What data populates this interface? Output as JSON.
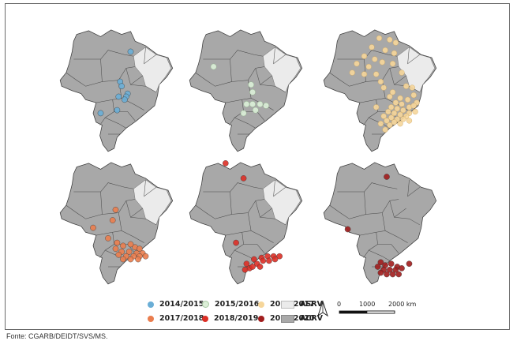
{
  "maps": [
    {
      "period": "2014/2015"
    },
    {
      "period": "2015/2016"
    },
    {
      "period": "2016/2017"
    },
    {
      "period": "2017/2018"
    },
    {
      "period": "2018/2019"
    },
    {
      "period": "2019/2020"
    }
  ],
  "legend": {
    "items": [
      {
        "label": "2014/2015",
        "color": "#6aaed6"
      },
      {
        "label": "2015/2016",
        "color": "#dcefd8"
      },
      {
        "label": "2016/2017",
        "color": "#f6d69a"
      },
      {
        "label": "2017/2018",
        "color": "#ea7d4e"
      },
      {
        "label": "2018/2019",
        "color": "#dc2f26"
      },
      {
        "label": "2019/2020",
        "color": "#a11d1d"
      }
    ],
    "areas": [
      {
        "label": "ASRV",
        "color": "#ebebeb"
      },
      {
        "label": "ACRV",
        "color": "#a9a9a9"
      }
    ]
  },
  "scale": {
    "zero": "0",
    "mid": "1000",
    "end": "2000 km"
  },
  "north_icon": "north-arrow-icon",
  "source": "Fonte: CGARB/DEIDT/SVS/MS."
}
